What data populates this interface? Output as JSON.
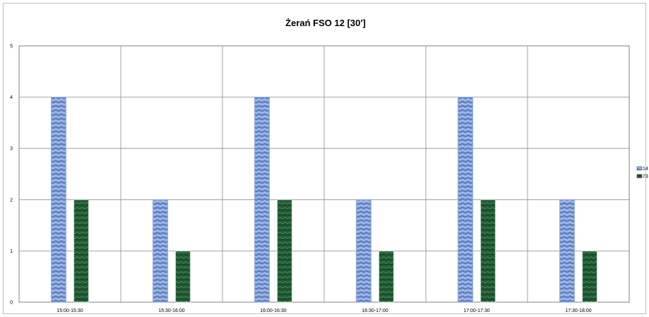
{
  "chart_data": {
    "type": "bar",
    "title": "Żerań FSO 12 [30']",
    "xlabel": "",
    "ylabel": "",
    "categories": [
      "15:00-15:30",
      "15:30-16:00",
      "16:00-16:30",
      "16:30-17:00",
      "17:00-17:30",
      "17:30-18:00"
    ],
    "series": [
      {
        "name": "14",
        "values": [
          4,
          2,
          4,
          2,
          4,
          2
        ],
        "color": "#6f8fcf"
      },
      {
        "name": "73",
        "values": [
          2,
          1,
          2,
          1,
          2,
          1
        ],
        "color": "#1f5a32"
      }
    ],
    "ylim": [
      0,
      5
    ],
    "yticks": [
      "0",
      "1",
      "2",
      "3",
      "4",
      "5"
    ],
    "grid": true,
    "legend": "right"
  }
}
